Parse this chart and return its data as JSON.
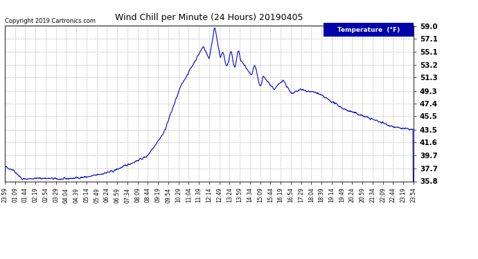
{
  "title": "Wind Chill per Minute (24 Hours) 20190405",
  "copyright_text": "Copyright 2019 Cartronics.com",
  "legend_label": "Temperature  (°F)",
  "line_color": "#0000CC",
  "background_color": "#ffffff",
  "grid_color": "#aaaaaa",
  "yticks": [
    35.8,
    37.7,
    39.7,
    41.6,
    43.5,
    45.5,
    47.4,
    49.3,
    51.3,
    53.2,
    55.1,
    57.1,
    59.0
  ],
  "xtick_labels": [
    "23:59",
    "01:09",
    "01:44",
    "02:19",
    "02:54",
    "03:29",
    "04:04",
    "04:39",
    "05:14",
    "05:49",
    "06:24",
    "06:59",
    "07:34",
    "08:09",
    "08:44",
    "09:19",
    "09:54",
    "10:29",
    "11:04",
    "11:39",
    "12:14",
    "12:49",
    "13:24",
    "13:59",
    "14:34",
    "15:09",
    "15:44",
    "16:19",
    "16:54",
    "17:29",
    "18:04",
    "18:39",
    "19:14",
    "19:49",
    "20:24",
    "20:59",
    "21:34",
    "22:09",
    "22:44",
    "23:19",
    "23:54"
  ],
  "ymin": 35.8,
  "ymax": 59.0,
  "figwidth": 6.9,
  "figheight": 3.75,
  "dpi": 100
}
